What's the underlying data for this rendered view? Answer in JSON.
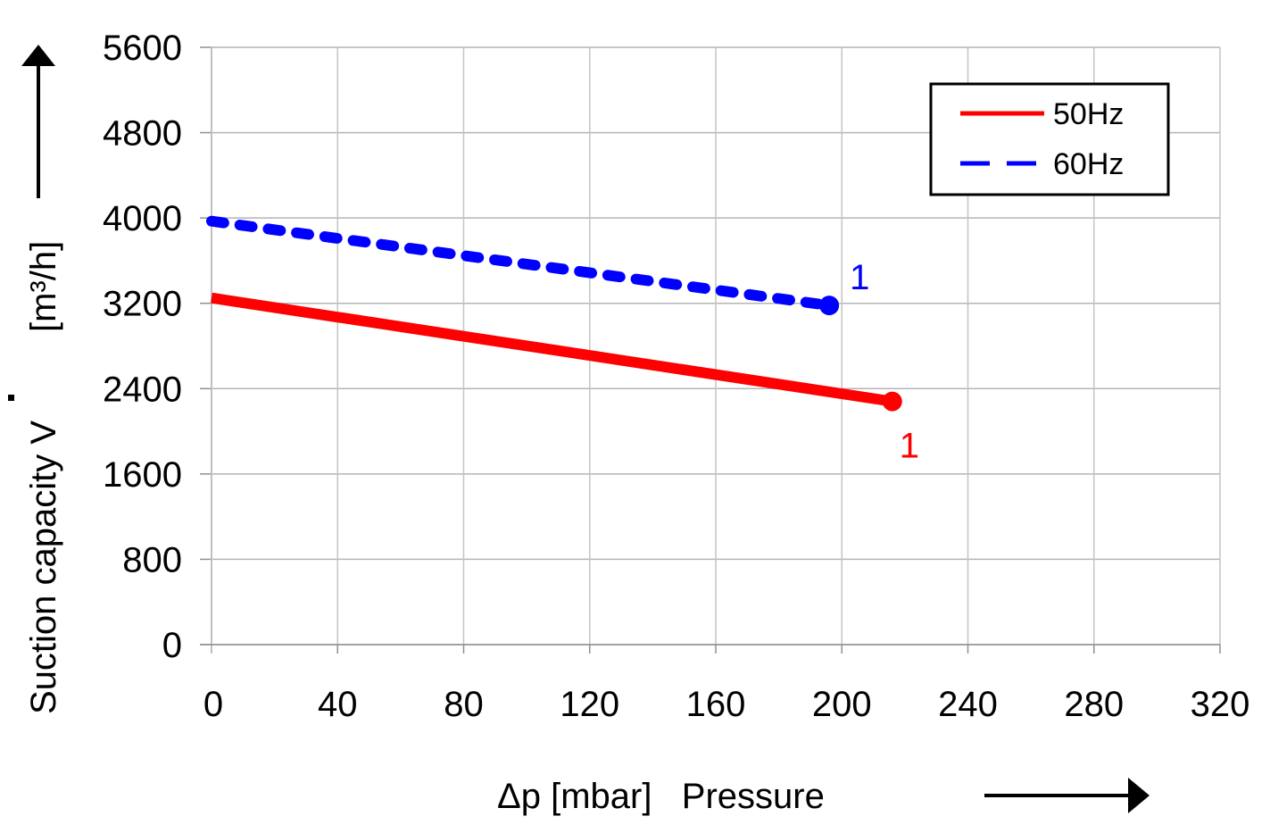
{
  "chart_data": {
    "type": "line",
    "title": "",
    "xlabel": "Δp [mbar]   Pressure",
    "ylabel_main": "Suction capacity V",
    "ylabel_unit": "[m³/h]",
    "xlim": [
      0,
      320
    ],
    "ylim": [
      0,
      5600
    ],
    "x_ticks": [
      0,
      40,
      80,
      120,
      160,
      200,
      240,
      280,
      320
    ],
    "y_ticks": [
      0,
      800,
      1600,
      2400,
      3200,
      4000,
      4800,
      5600
    ],
    "grid": true,
    "legend_position": "top-right",
    "series": [
      {
        "name": "50Hz",
        "color": "#ff0000",
        "style": "solid",
        "x": [
          0,
          216
        ],
        "y": [
          3250,
          2280
        ],
        "endpoint_label": "1"
      },
      {
        "name": "60Hz",
        "color": "#0000ff",
        "style": "dashed",
        "x": [
          0,
          196
        ],
        "y": [
          3970,
          3180
        ],
        "endpoint_label": "1"
      }
    ]
  }
}
